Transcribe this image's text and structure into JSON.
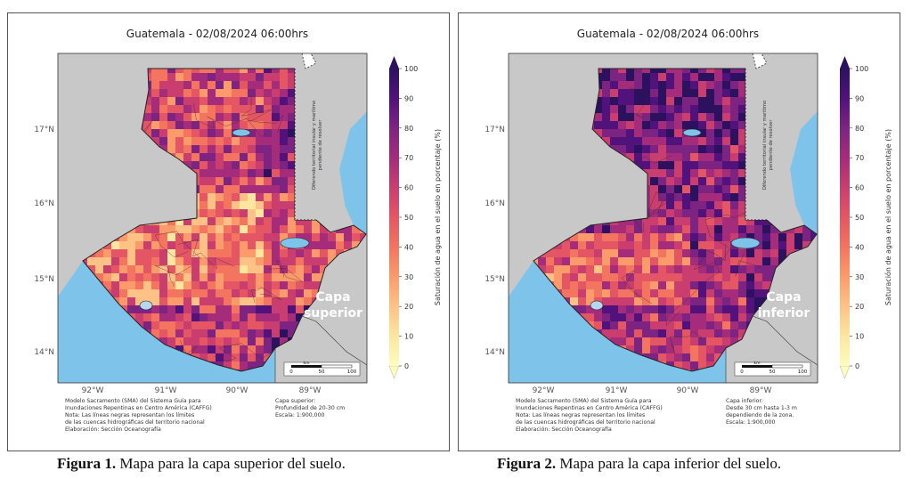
{
  "panels": [
    {
      "title": "Guatemala - 02/08/2024  06:00hrs",
      "layer_label_line1": "Capa",
      "layer_label_line2": "superior",
      "colorbar_label": "Saturación de agua en el suelo en porcentaje (%)",
      "colorbar_ticks": [
        "0",
        "10",
        "20",
        "30",
        "40",
        "50",
        "60",
        "70",
        "80",
        "90",
        "100"
      ],
      "lat_labels": [
        "17°N",
        "16°N",
        "15°N",
        "14°N"
      ],
      "lon_labels": [
        "92°W",
        "91°W",
        "90°W",
        "89°W"
      ],
      "dispute_text_line1": "Diferendo territorial insular y marítimo",
      "dispute_text_line2": "pendiente de resolver",
      "scale_unit": "km",
      "scale_ticks": [
        "0",
        "50",
        "100"
      ],
      "footer_left": [
        "Modelo Sacramento (SMA) del Sistema Guía para",
        "Inundaciones Repentinas en Centro América (CAFFG)",
        "Nota: Las líneas negras representan los límites",
        "de las cuencas hidrográficas del territorio nacional",
        "Elaboración: Sección Oceanografía"
      ],
      "footer_right": [
        "Capa superior:",
        "Profundidad de 20-30 cm",
        "Escala: 1:900,000"
      ],
      "dominant": "light"
    },
    {
      "title": "Guatemala - 02/08/2024  06:00hrs",
      "layer_label_line1": "Capa",
      "layer_label_line2": "inferior",
      "colorbar_label": "Saturación de agua en el suelo en porcentaje (%)",
      "colorbar_ticks": [
        "0",
        "10",
        "20",
        "30",
        "40",
        "50",
        "60",
        "70",
        "80",
        "90",
        "100"
      ],
      "lat_labels": [
        "17°N",
        "16°N",
        "15°N",
        "14°N"
      ],
      "lon_labels": [
        "92°W",
        "91°W",
        "90°W",
        "89°W"
      ],
      "dispute_text_line1": "Diferendo territorial insular y marítimo",
      "dispute_text_line2": "pendiente de resolver",
      "scale_unit": "km",
      "scale_ticks": [
        "0",
        "50",
        "100"
      ],
      "footer_left": [
        "Modelo Sacramento (SMA) del Sistema Guía para",
        "Inundaciones Repentinas en Centro América (CAFFG)",
        "Nota: Las líneas negras representan los límites",
        "de las cuencas hidrográficas del territorio nacional",
        "Elaboración: Sección Oceanografía"
      ],
      "footer_right": [
        "Capa inferior:",
        "Desde 30 cm hasta 1-3 m",
        "dependiendo de la zona.",
        "Escala: 1:900,000"
      ],
      "dominant": "dark"
    }
  ],
  "captions": [
    {
      "label": "Figura 1.",
      "text": " Mapa para la capa superior del suelo."
    },
    {
      "label": "Figura 2.",
      "text": " Mapa para la capa inferior del suelo."
    }
  ],
  "colors": {
    "ocean": "#7ec3ea",
    "neighbor_land": "#c8c8c8",
    "colormap": [
      "#fcfdbf",
      "#fde6a0",
      "#fec287",
      "#fb9b6b",
      "#f3745f",
      "#e55664",
      "#c93e6f",
      "#a52c7a",
      "#7d2482",
      "#51127c",
      "#2c115f"
    ]
  }
}
